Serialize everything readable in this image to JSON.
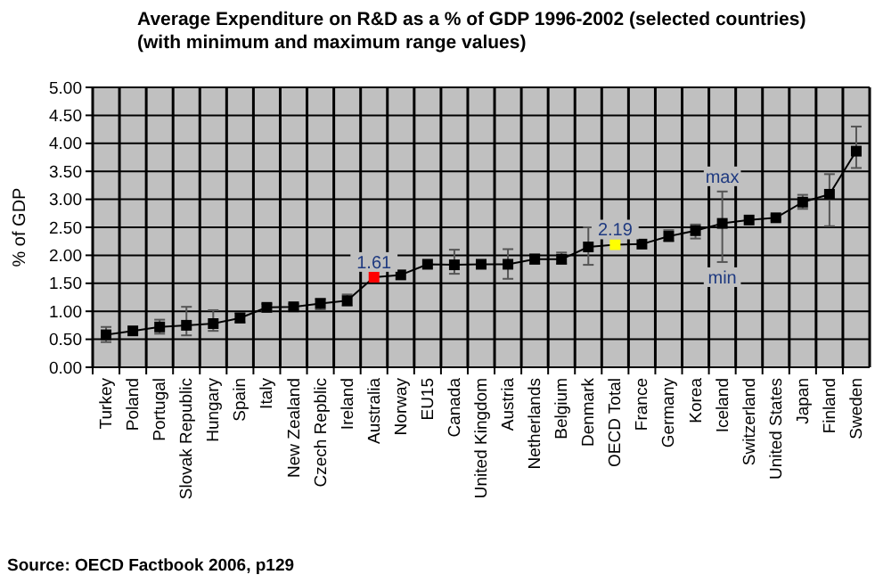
{
  "chart_data": {
    "type": "line",
    "title": "Average Expenditure on R&D as a % of GDP 1996-2002 (selected countries)",
    "subtitle": "(with minimum and maximum range values)",
    "ylabel": "% of GDP",
    "categories": [
      "Turkey",
      "Poland",
      "Portugal",
      "Slovak Republic",
      "Hungary",
      "Spain",
      "Italy",
      "New Zealand",
      "Czech Repblic",
      "Ireland",
      "Australia",
      "Norway",
      "EU15",
      "Canada",
      "United Kingdom",
      "Austria",
      "Netherlands",
      "Belgium",
      "Denmark",
      "OECD Total",
      "France",
      "Germany",
      "Korea",
      "Iceland",
      "Switzerland",
      "United States",
      "Japan",
      "Finland",
      "Sweden"
    ],
    "values": [
      0.58,
      0.65,
      0.72,
      0.75,
      0.78,
      0.88,
      1.07,
      1.08,
      1.14,
      1.19,
      1.61,
      1.65,
      1.84,
      1.83,
      1.84,
      1.84,
      1.93,
      1.93,
      2.15,
      2.19,
      2.2,
      2.34,
      2.44,
      2.57,
      2.63,
      2.67,
      2.95,
      3.09,
      3.86
    ],
    "errors": [
      [
        0.45,
        0.72
      ],
      null,
      [
        0.6,
        0.85
      ],
      [
        0.57,
        1.08
      ],
      [
        0.65,
        1.02
      ],
      [
        0.8,
        0.97
      ],
      [
        1.0,
        1.13
      ],
      [
        1.03,
        1.13
      ],
      [
        1.03,
        1.22
      ],
      [
        1.1,
        1.3
      ],
      null,
      null,
      null,
      [
        1.67,
        2.1
      ],
      null,
      [
        1.58,
        2.11
      ],
      [
        1.85,
        2.02
      ],
      [
        1.85,
        2.05
      ],
      [
        1.83,
        2.5
      ],
      null,
      null,
      [
        2.25,
        2.45
      ],
      [
        2.3,
        2.55
      ],
      [
        1.88,
        3.14
      ],
      null,
      [
        2.62,
        2.72
      ],
      [
        2.83,
        3.08
      ],
      [
        2.52,
        3.45
      ],
      [
        3.56,
        4.3
      ]
    ],
    "colors": [
      "#000000",
      "#000000",
      "#000000",
      "#000000",
      "#000000",
      "#000000",
      "#000000",
      "#000000",
      "#000000",
      "#000000",
      "#ff0000",
      "#000000",
      "#000000",
      "#000000",
      "#000000",
      "#000000",
      "#000000",
      "#000000",
      "#000000",
      "#ffff00",
      "#000000",
      "#000000",
      "#000000",
      "#000000",
      "#000000",
      "#000000",
      "#000000",
      "#000000",
      "#000000"
    ],
    "ylim": [
      0,
      5
    ],
    "yticks": [
      {
        "value": 0,
        "label": "0.00"
      },
      {
        "value": 0.5,
        "label": "0.50"
      },
      {
        "value": 1,
        "label": "1.00"
      },
      {
        "value": 1.5,
        "label": "1.50"
      },
      {
        "value": 2,
        "label": "2.00"
      },
      {
        "value": 2.5,
        "label": "2.50"
      },
      {
        "value": 3,
        "label": "3.00"
      },
      {
        "value": 3.5,
        "label": "3.50"
      },
      {
        "value": 4,
        "label": "4.00"
      },
      {
        "value": 4.5,
        "label": "4.50"
      },
      {
        "value": 5,
        "label": "5.00"
      }
    ],
    "grid": true,
    "marker": "square",
    "line_style": "solid",
    "annotations": [
      {
        "text": "1.61",
        "x": "Australia",
        "y": 1.61
      },
      {
        "text": "2.19",
        "x": "OECD Total",
        "y": 2.19
      },
      {
        "text": "max",
        "x": "Iceland",
        "y": 3.14
      },
      {
        "text": "min",
        "x": "Iceland",
        "y": 1.88
      },
      "Source: OECD Factbook 2006, p129"
    ]
  }
}
